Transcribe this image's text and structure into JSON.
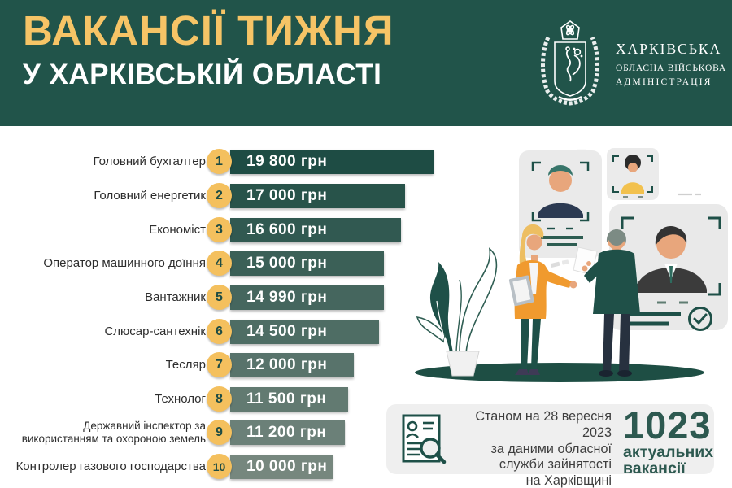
{
  "header": {
    "title_line1": "ВАКАНСІЇ ТИЖНЯ",
    "title_line2": "У ХАРКІВСЬКІЙ ОБЛАСТІ"
  },
  "logo": {
    "org_line1": "ХАРКІВСЬКА",
    "org_line2": "ОБЛАСНА ВІЙСЬКОВА",
    "org_line3": "АДМІНІСТРАЦІЯ"
  },
  "chart_data": {
    "type": "bar",
    "orientation": "horizontal",
    "title": "Вакансії тижня у Харківській області",
    "unit": "грн",
    "xlim": [
      0,
      19800
    ],
    "grid": false,
    "categories": [
      "Головний бухгалтер",
      "Головний енергетик",
      "Економіст",
      "Оператор машинного доїння",
      "Вантажник",
      "Слюсар-сантехнік",
      "Тесляр",
      "Технолог",
      "Державний інспектор за використанням та охороною земель",
      "Контролер газового господарства"
    ],
    "values": [
      19800,
      17000,
      16600,
      15000,
      14990,
      14500,
      12000,
      11500,
      11200,
      10000
    ],
    "items": [
      {
        "rank": "1",
        "label": "Головний бухгалтер",
        "value": 19800,
        "value_label": "19 800 грн",
        "color": "#1E4C44"
      },
      {
        "rank": "2",
        "label": "Головний енергетик",
        "value": 17000,
        "value_label": "17 000 грн",
        "color": "#28534A"
      },
      {
        "rank": "3",
        "label": "Економіст",
        "value": 16600,
        "value_label": "16 600 грн",
        "color": "#315951"
      },
      {
        "rank": "4",
        "label": "Оператор машинного доїння",
        "value": 15000,
        "value_label": "15 000 грн",
        "color": "#3B6057"
      },
      {
        "rank": "5",
        "label": "Вантажник",
        "value": 14990,
        "value_label": "14 990 грн",
        "color": "#45665E"
      },
      {
        "rank": "6",
        "label": "Слюсар-сантехнік",
        "value": 14500,
        "value_label": "14 500 грн",
        "color": "#4E6D64"
      },
      {
        "rank": "7",
        "label": "Тесляр",
        "value": 12000,
        "value_label": "12 000 грн",
        "color": "#58736B"
      },
      {
        "rank": "8",
        "label": "Технолог",
        "value": 11500,
        "value_label": "11 500 грн",
        "color": "#627A71"
      },
      {
        "rank": "9",
        "label": "Державний інспектор за\nвикористанням та охороною земель",
        "value": 11200,
        "value_label": "11 200 грн",
        "color": "#6B8078"
      },
      {
        "rank": "10",
        "label": "Контролер газового господарства",
        "value": 10000,
        "value_label": "10 000 грн",
        "color": "#76877E"
      }
    ]
  },
  "footer": {
    "date_lines": [
      "Станом на 28 вересня 2023",
      "за даними обласної",
      "служби зайнятості",
      "на Харківщині"
    ],
    "count": "1023",
    "count_caption1": "актуальних",
    "count_caption2": "вакансії"
  },
  "icons": {
    "emblem": "kharkiv-oblast-coat-of-arms",
    "resume_search": "document-with-person-and-magnifier",
    "check": "checkmark-in-circle"
  },
  "colors": {
    "header_bg": "#21544A",
    "accent_yellow": "#F6C466",
    "badge_yellow": "#F4C05E",
    "dark_green": "#1E5048",
    "footer_box": "#EFEFEF",
    "text_dark": "#2d2d2d"
  }
}
